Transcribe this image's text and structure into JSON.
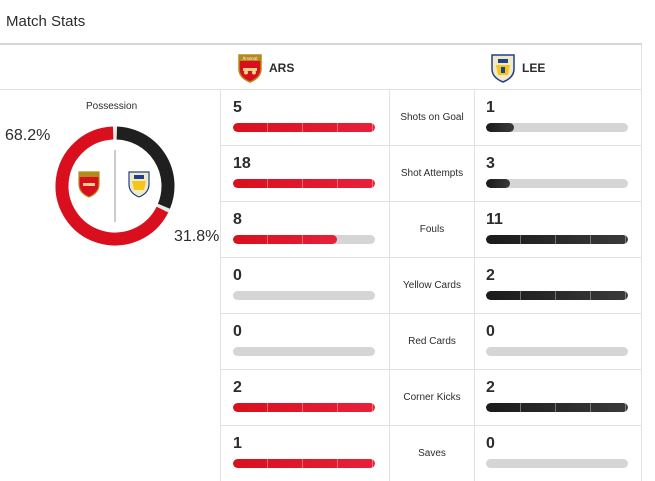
{
  "page": {
    "title": "Match Stats"
  },
  "teams": {
    "home": {
      "abbr": "ARS",
      "crest_icon": "arsenal-crest-icon",
      "crest_text": "Arsenal",
      "color": "#d90f1d"
    },
    "away": {
      "abbr": "LEE",
      "crest_icon": "leeds-crest-icon",
      "color": "#1f1f1f"
    }
  },
  "possession": {
    "label": "Possession",
    "home_pct": "68.2%",
    "away_pct": "31.8%",
    "home_value": 68.2,
    "away_value": 31.8
  },
  "stats": [
    {
      "label": "Shots on Goal",
      "home": "5",
      "away": "1",
      "home_fill": 1.0,
      "away_fill": 0.2
    },
    {
      "label": "Shot Attempts",
      "home": "18",
      "away": "3",
      "home_fill": 1.0,
      "away_fill": 0.17
    },
    {
      "label": "Fouls",
      "home": "8",
      "away": "11",
      "home_fill": 0.73,
      "away_fill": 1.0
    },
    {
      "label": "Yellow Cards",
      "home": "0",
      "away": "2",
      "home_fill": 0.0,
      "away_fill": 1.0
    },
    {
      "label": "Red Cards",
      "home": "0",
      "away": "0",
      "home_fill": 0.0,
      "away_fill": 0.0
    },
    {
      "label": "Corner Kicks",
      "home": "2",
      "away": "2",
      "home_fill": 1.0,
      "away_fill": 1.0
    },
    {
      "label": "Saves",
      "home": "1",
      "away": "0",
      "home_fill": 1.0,
      "away_fill": 0.0
    }
  ]
}
